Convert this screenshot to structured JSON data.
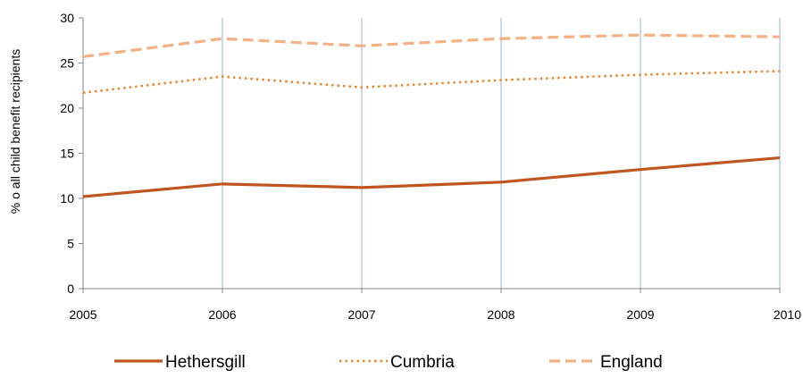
{
  "chart_data": {
    "type": "line",
    "title": "",
    "xlabel": "",
    "ylabel": "% o all child benefit recipients",
    "x": [
      "2005",
      "2006",
      "2007",
      "2008",
      "2009",
      "2010"
    ],
    "ylim": [
      0,
      30
    ],
    "yticks": [
      "0",
      "5",
      "10",
      "15",
      "20",
      "25",
      "30"
    ],
    "grid": "vertical",
    "legend_position": "bottom",
    "series": [
      {
        "name": "Hethersgill",
        "values": [
          10.2,
          11.6,
          11.2,
          11.8,
          13.2,
          14.5
        ],
        "color": "#c0561f",
        "style": "solid"
      },
      {
        "name": "Cumbria",
        "values": [
          21.7,
          23.5,
          22.3,
          23.1,
          23.7,
          24.1
        ],
        "color": "#e8862e",
        "style": "dotted"
      },
      {
        "name": "England",
        "values": [
          25.7,
          27.7,
          26.9,
          27.7,
          28.1,
          27.9
        ],
        "color": "#f4b183",
        "style": "dashed"
      }
    ],
    "gridline_color": "#b8cce4"
  }
}
